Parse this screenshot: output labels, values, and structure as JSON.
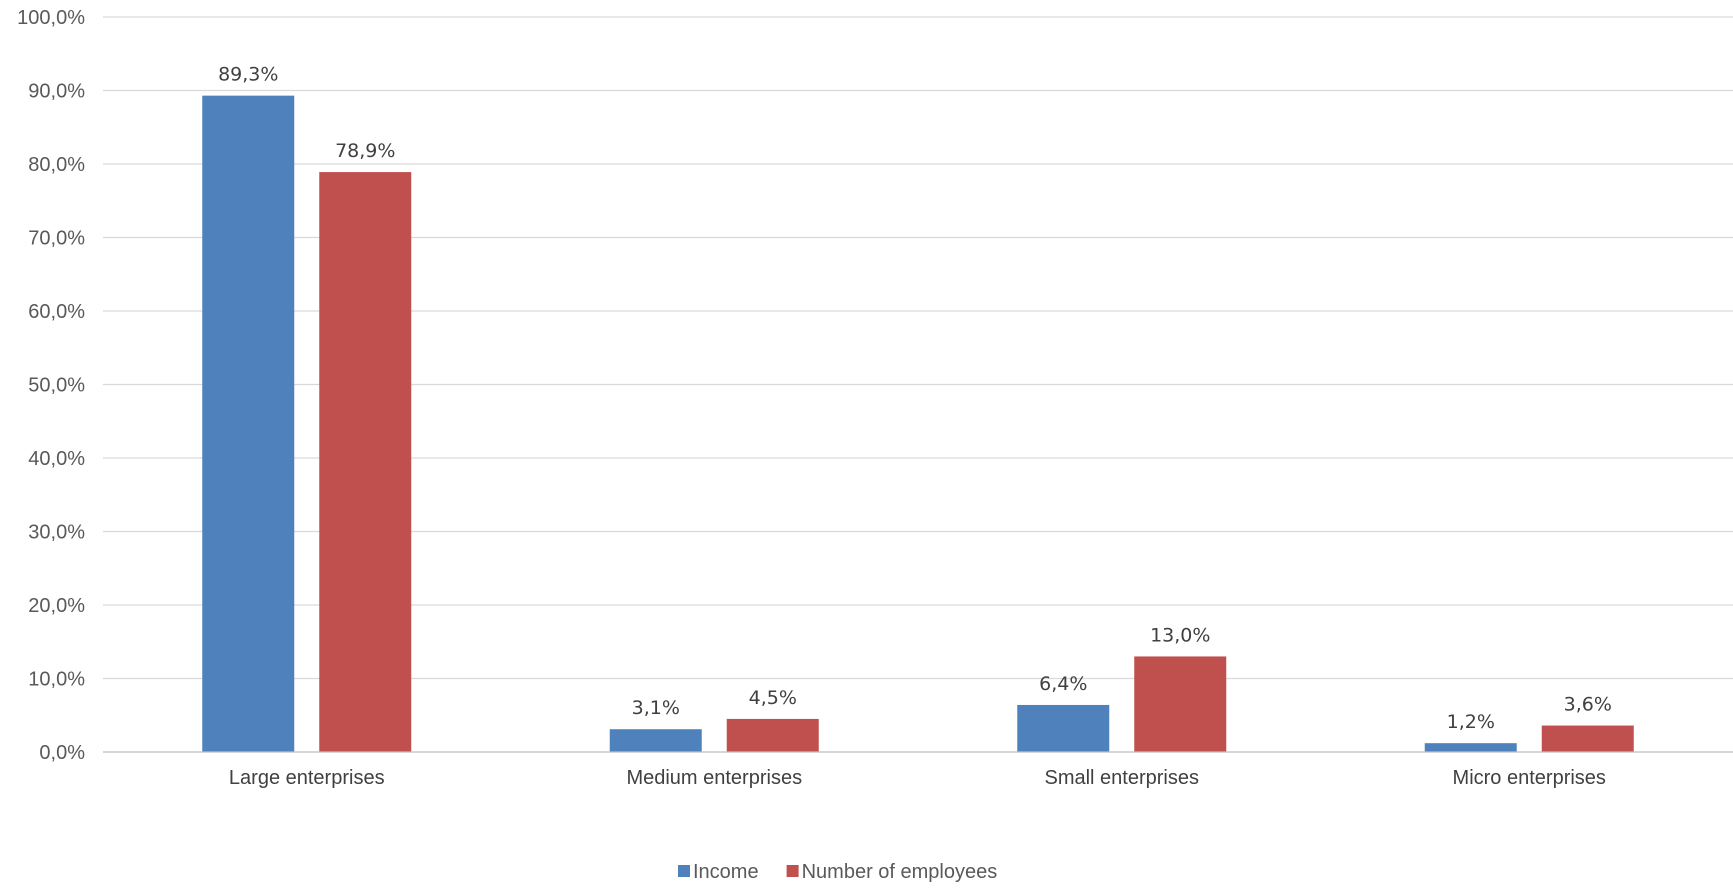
{
  "chart_data": {
    "type": "bar",
    "title": "",
    "xlabel": "",
    "ylabel": "",
    "categories": [
      "Large enterprises",
      "Medium enterprises",
      "Small enterprises",
      "Micro enterprises"
    ],
    "series": [
      {
        "name": "Income",
        "color": "#4F81BD",
        "values": [
          89.3,
          3.1,
          6.4,
          1.2
        ],
        "labels": [
          "89,3%",
          "3,1%",
          "6,4%",
          "1,2%"
        ]
      },
      {
        "name": "Number of employees",
        "color": "#C0504D",
        "values": [
          78.9,
          4.5,
          13.0,
          3.6
        ],
        "labels": [
          "78,9%",
          "4,5%",
          "13,0%",
          "3,6%"
        ]
      }
    ],
    "ylim": [
      0,
      100
    ],
    "yticks": [
      0,
      10,
      20,
      30,
      40,
      50,
      60,
      70,
      80,
      90,
      100
    ],
    "ytick_labels": [
      "0,0%",
      "10,0%",
      "20,0%",
      "30,0%",
      "40,0%",
      "50,0%",
      "60,0%",
      "70,0%",
      "80,0%",
      "90,0%",
      "100,0%"
    ],
    "grid": true,
    "legend_position": "bottom"
  }
}
